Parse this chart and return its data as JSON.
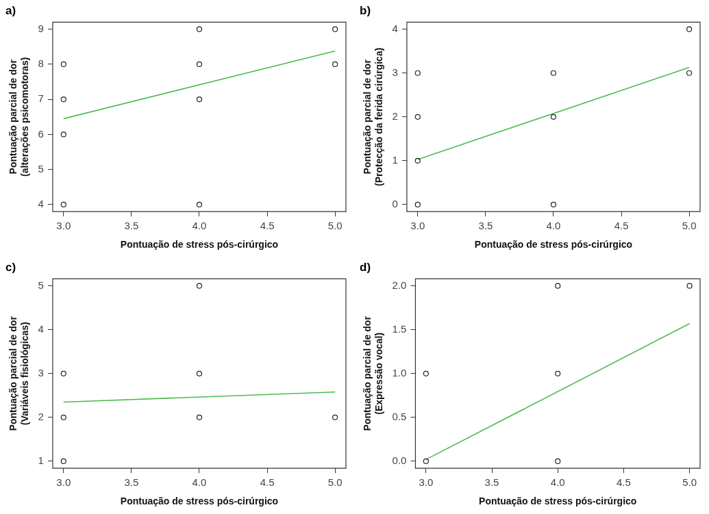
{
  "chart_data": [
    {
      "type": "scatter",
      "title": "a)",
      "xlabel": "Pontuação de stress pós-cirúrgico",
      "ylabel": "Pontuação parcial de dor\n(alterações psicomotoras)",
      "xlim": [
        2.92,
        5.08
      ],
      "xticks": [
        {
          "value": 3,
          "label": "3.0"
        },
        {
          "value": 3.5,
          "label": "3.5"
        },
        {
          "value": 4,
          "label": "4.0"
        },
        {
          "value": 4.5,
          "label": "4.5"
        },
        {
          "value": 5,
          "label": "5.0"
        }
      ],
      "ylim": [
        3.8,
        9.2
      ],
      "yticks": [
        4,
        5,
        6,
        7,
        8,
        9
      ],
      "grid": false,
      "legend": false,
      "series": [
        {
          "marker": "circle",
          "color": "#222222",
          "x": [
            3,
            3,
            3,
            3,
            4,
            4,
            4,
            4,
            5,
            5
          ],
          "values": [
            4,
            6,
            7,
            8,
            4,
            7,
            8,
            9,
            8,
            9
          ]
        },
        {
          "type": "line",
          "color": "#4dbb4d",
          "x": [
            3,
            5
          ],
          "values": [
            6.45,
            8.38
          ],
          "marker": "none"
        }
      ]
    },
    {
      "type": "scatter",
      "title": "b)",
      "xlabel": "Pontuação de stress pós-cirúrgico",
      "ylabel": "Pontuação parcial de dor\n(Protecção da ferida cirúrgica)",
      "xlim": [
        2.92,
        5.08
      ],
      "xticks": [
        {
          "value": 3,
          "label": "3.0"
        },
        {
          "value": 3.5,
          "label": "3.5"
        },
        {
          "value": 4,
          "label": "4.0"
        },
        {
          "value": 4.5,
          "label": "4.5"
        },
        {
          "value": 5,
          "label": "5.0"
        }
      ],
      "ylim": [
        -0.16,
        4.16
      ],
      "yticks": [
        0,
        1,
        2,
        3,
        4
      ],
      "grid": false,
      "legend": false,
      "series": [
        {
          "marker": "circle",
          "color": "#222222",
          "x": [
            3,
            3,
            3,
            3,
            4,
            4,
            4,
            5,
            5
          ],
          "values": [
            0,
            1,
            2,
            3,
            0,
            2,
            3,
            3,
            4
          ]
        },
        {
          "type": "line",
          "color": "#4dbb4d",
          "x": [
            3,
            5
          ],
          "values": [
            1.03,
            3.13
          ],
          "marker": "none"
        }
      ]
    },
    {
      "type": "scatter",
      "title": "c)",
      "xlabel": "Pontuação de stress pós-cirúrgico",
      "ylabel": "Pontuação parcial de dor\n(Variáveis fisiológicas)",
      "xlim": [
        2.92,
        5.08
      ],
      "xticks": [
        {
          "value": 3,
          "label": "3.0"
        },
        {
          "value": 3.5,
          "label": "3.5"
        },
        {
          "value": 4,
          "label": "4.0"
        },
        {
          "value": 4.5,
          "label": "4.5"
        },
        {
          "value": 5,
          "label": "5.0"
        }
      ],
      "ylim": [
        0.84,
        5.16
      ],
      "yticks": [
        1,
        2,
        3,
        4,
        5
      ],
      "grid": false,
      "legend": false,
      "series": [
        {
          "marker": "circle",
          "color": "#222222",
          "x": [
            3,
            3,
            3,
            4,
            4,
            4,
            5
          ],
          "values": [
            1,
            2,
            3,
            2,
            3,
            5,
            2
          ]
        },
        {
          "type": "line",
          "color": "#4dbb4d",
          "x": [
            3,
            5
          ],
          "values": [
            2.35,
            2.58
          ],
          "marker": "none"
        }
      ]
    },
    {
      "type": "scatter",
      "title": "d)",
      "xlabel": "Pontuação de stress pós-cirúrgico",
      "ylabel": "Pontuação parcial de dor\n(Expressão vocal)",
      "xlim": [
        2.92,
        5.08
      ],
      "xticks": [
        {
          "value": 3,
          "label": "3.0"
        },
        {
          "value": 3.5,
          "label": "3.5"
        },
        {
          "value": 4,
          "label": "4.0"
        },
        {
          "value": 4.5,
          "label": "4.5"
        },
        {
          "value": 5,
          "label": "5.0"
        }
      ],
      "ylim": [
        -0.08,
        2.08
      ],
      "yticks": [
        {
          "value": 0,
          "label": "0.0"
        },
        0.5,
        {
          "value": 1,
          "label": "1.0"
        },
        1.5,
        {
          "value": 2,
          "label": "2.0"
        }
      ],
      "grid": false,
      "legend": false,
      "series": [
        {
          "marker": "circle",
          "color": "#222222",
          "x": [
            3,
            3,
            4,
            4,
            4,
            5
          ],
          "values": [
            0,
            1,
            0,
            1,
            2,
            2
          ]
        },
        {
          "type": "line",
          "color": "#4dbb4d",
          "x": [
            3,
            5
          ],
          "values": [
            0.02,
            1.57
          ],
          "marker": "none"
        }
      ]
    }
  ]
}
